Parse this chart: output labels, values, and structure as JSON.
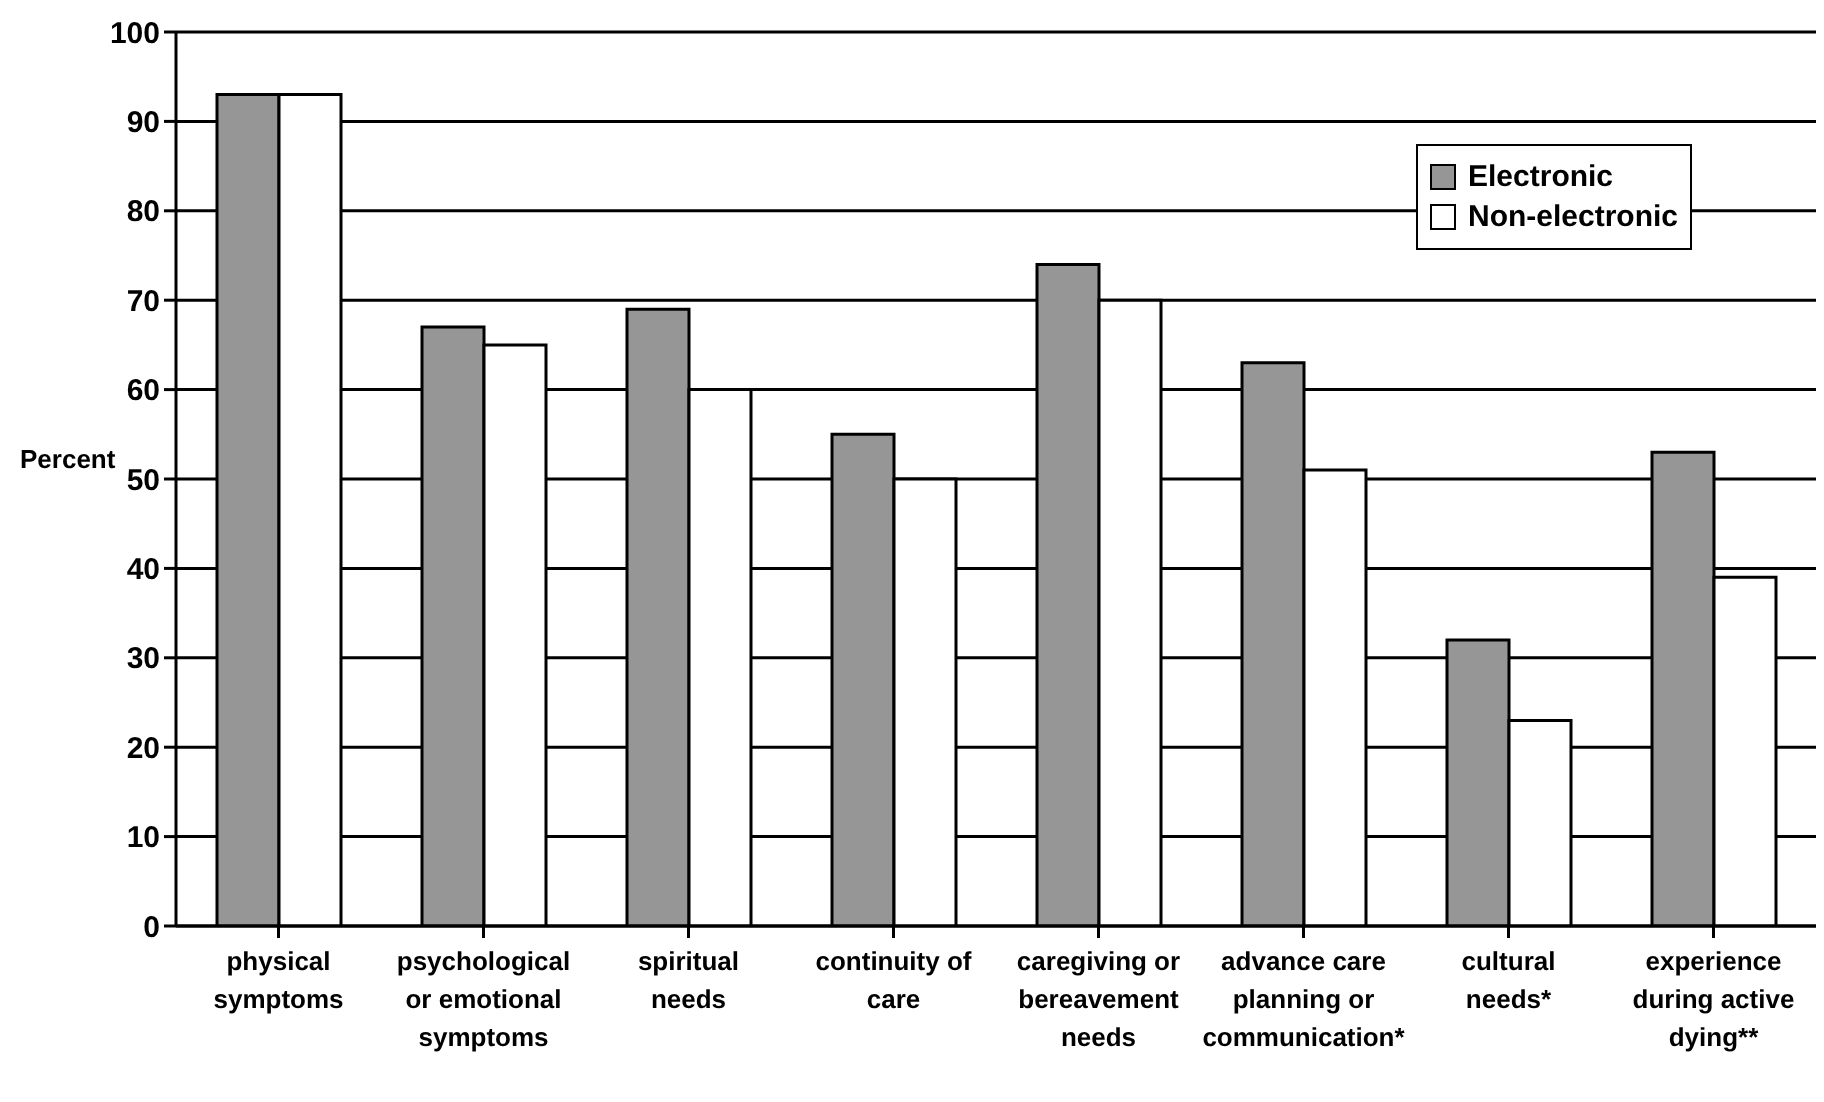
{
  "chart_data": {
    "type": "bar",
    "ylabel": "Percent",
    "categories": [
      "physical symptoms",
      "psychological or emotional symptoms",
      "spiritual needs",
      "continuity of care",
      "caregiving or bereavement needs",
      "advance care planning or communication*",
      "cultural needs*",
      "experience during active dying**"
    ],
    "series": [
      {
        "name": "Electronic",
        "color": "#969696",
        "values": [
          93,
          67,
          69,
          55,
          74,
          63,
          32,
          53
        ]
      },
      {
        "name": "Non-electronic",
        "color": "#ffffff",
        "values": [
          93,
          65,
          60,
          50,
          70,
          51,
          23,
          39
        ]
      }
    ],
    "ylim": [
      0,
      100
    ],
    "yticks": [
      0,
      10,
      20,
      30,
      40,
      50,
      60,
      70,
      80,
      90,
      100
    ],
    "grid": "y",
    "legend": "top right"
  }
}
